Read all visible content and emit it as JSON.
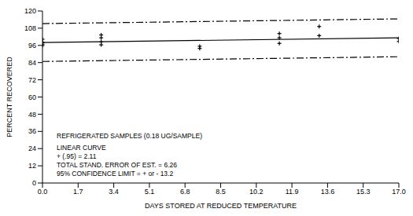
{
  "chart_data": {
    "type": "scatter",
    "x_label": "DAYS STORED AT REDUCED TEMPERATURE",
    "y_label": "PERCENT RECOVERED",
    "annotations": [
      "REFRIGERATED SAMPLES (0.18 UG/SAMPLE)",
      "LINEAR CURVE",
      "+ (.95) = 2.11",
      "TOTAL STAND. ERROR OF EST. = 6.26",
      "95% CONFIDENCE LIMIT = + or - 13.2"
    ],
    "series": [
      {
        "type": "scatter",
        "color": "#000000",
        "marker": "plus",
        "x": [
          0,
          0,
          0,
          0,
          2.8,
          2.8,
          2.8,
          2.8,
          7.5,
          7.5,
          11.3,
          11.3,
          11.3,
          13.2,
          13.2,
          17,
          17
        ],
        "values": [
          100.3,
          98.3,
          96.9,
          95.9,
          103.3,
          101.3,
          98.4,
          96.4,
          95.4,
          93.9,
          104.3,
          101.3,
          97.4,
          109.2,
          102.8,
          100.8,
          98.8
        ]
      },
      {
        "type": "line",
        "color": "#000000",
        "line_style": "solid",
        "x": [
          0,
          17
        ],
        "values": [
          98,
          101.3
        ]
      },
      {
        "type": "line",
        "color": "#000000",
        "line_style": "dashdot",
        "x": [
          0,
          17
        ],
        "values": [
          111.2,
          114.5
        ]
      },
      {
        "type": "line",
        "color": "#000000",
        "line_style": "dashdot",
        "x": [
          0,
          17
        ],
        "values": [
          84.8,
          88.1
        ]
      }
    ],
    "xlim": [
      0,
      17
    ],
    "xticks": [
      {
        "value": 0,
        "label": "0.0"
      },
      1.7,
      3.4,
      5.1,
      6.8,
      8.5,
      10.2,
      11.9,
      13.6,
      15.3,
      {
        "value": 17,
        "label": "17.0"
      }
    ],
    "ylim": [
      0,
      120
    ],
    "yticks": [
      0,
      12,
      24,
      36,
      48,
      60,
      72,
      84,
      96,
      108,
      120
    ],
    "grid": false
  }
}
